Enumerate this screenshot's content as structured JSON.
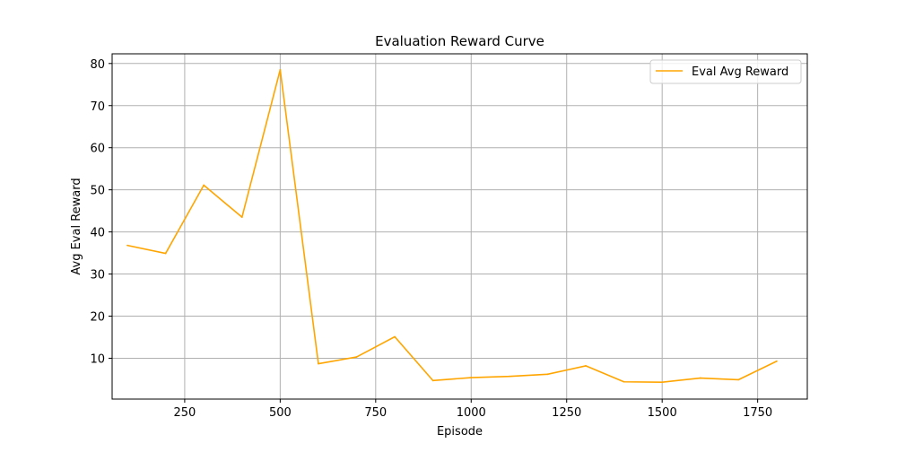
{
  "chart_data": {
    "type": "line",
    "title": "Evaluation Reward Curve",
    "xlabel": "Episode",
    "ylabel": "Avg Eval Reward",
    "xlim": [
      60,
      1880
    ],
    "ylim": [
      0.3,
      82.3
    ],
    "xticks": [
      250,
      500,
      750,
      1000,
      1250,
      1500,
      1750
    ],
    "yticks": [
      10,
      20,
      30,
      40,
      50,
      60,
      70,
      80
    ],
    "grid": true,
    "legend_position": "top-right",
    "series": [
      {
        "name": "Eval Avg Reward",
        "color": "#ffa500",
        "x": [
          100,
          200,
          300,
          400,
          500,
          600,
          700,
          800,
          900,
          1000,
          1100,
          1200,
          1300,
          1400,
          1500,
          1600,
          1700,
          1800
        ],
        "y": [
          36.8,
          34.9,
          51.1,
          43.5,
          78.5,
          8.7,
          10.3,
          15.1,
          4.7,
          5.4,
          5.7,
          6.2,
          8.2,
          4.4,
          4.3,
          5.3,
          4.9,
          9.3
        ]
      }
    ]
  }
}
